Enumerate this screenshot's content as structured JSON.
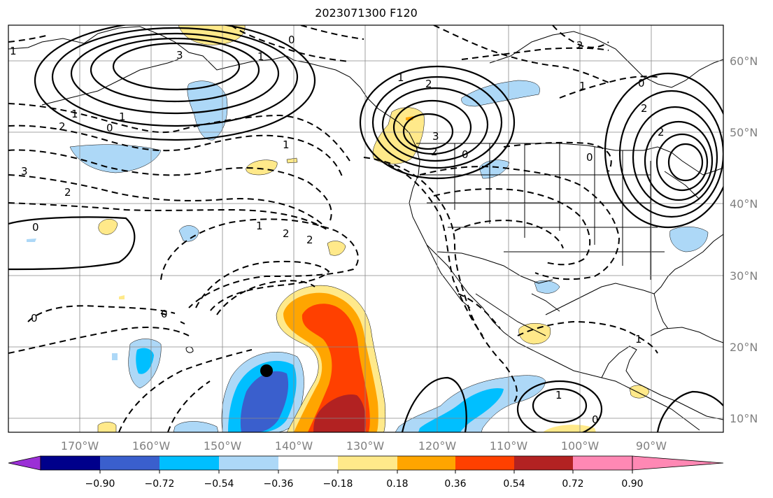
{
  "title": "2023071300 F120",
  "map": {
    "lon_range": [
      "180°W",
      "80°W"
    ],
    "lat_range": [
      "8°N",
      "65°N"
    ],
    "latitude_labels": [
      "60°N",
      "50°N",
      "40°N",
      "30°N",
      "20°N",
      "10°N"
    ],
    "longitude_labels": [
      "170°W",
      "160°W",
      "150°W",
      "140°W",
      "130°W",
      "120°W",
      "110°W",
      "100°W",
      "90°W"
    ],
    "gridlines": true,
    "marker": {
      "label": "storm-position",
      "lon": "144°W",
      "lat": "16.5°N"
    }
  },
  "contour_labels": [
    "1",
    "3",
    "1",
    "1",
    "0",
    "1",
    "2",
    "3",
    "1",
    "2",
    "0",
    "2",
    "0",
    "2",
    "1",
    "2",
    "3",
    "2",
    "1",
    "0",
    "2",
    "1",
    "2",
    "0",
    "0",
    "0",
    "0",
    "1",
    "0",
    "1",
    "2"
  ],
  "colorbar": {
    "tick_labels": [
      "−0.90",
      "−0.72",
      "−0.54",
      "−0.36",
      "−0.18",
      "0.18",
      "0.36",
      "0.54",
      "0.72",
      "0.90"
    ],
    "colors": [
      "#9b30d6",
      "#00008b",
      "#3a5fcd",
      "#00bfff",
      "#add8f7",
      "#ffffff",
      "#ffe98a",
      "#ffa500",
      "#ff4000",
      "#b22222",
      "#ff88b4"
    ],
    "extend": "both"
  }
}
